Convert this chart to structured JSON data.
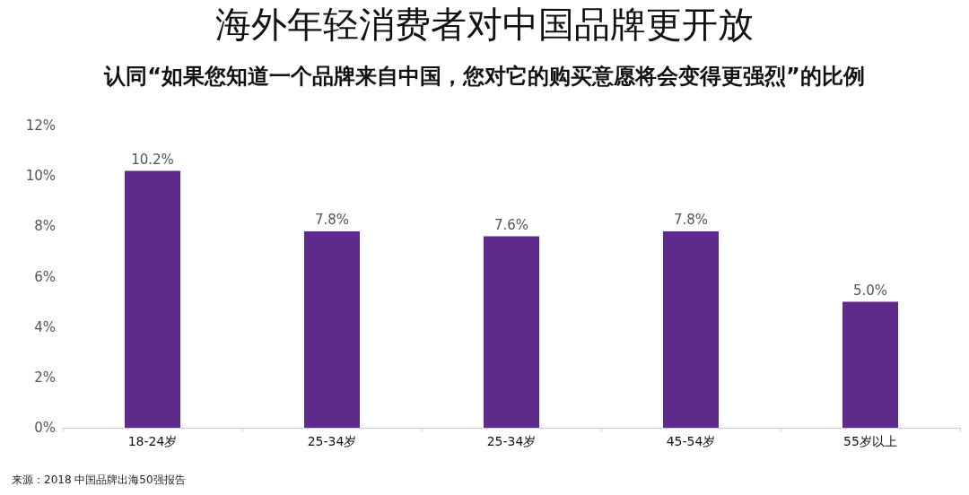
{
  "chart_data": {
    "type": "bar",
    "title": "海外年轻消费者对中国品牌更开放",
    "subtitle": "认同“如果您知道一个品牌来自中国，您对它的购买意愿将会变得更强烈”的比例",
    "categories": [
      "18-24岁",
      "25-34岁",
      "25-34岁",
      "45-54岁",
      "55岁以上"
    ],
    "values": [
      10.2,
      7.8,
      7.6,
      7.8,
      5.0
    ],
    "value_labels": [
      "10.2%",
      "7.8%",
      "7.6%",
      "7.8%",
      "5.0%"
    ],
    "color": "#5e2a8c",
    "ylim": [
      0,
      12
    ],
    "yticks": [
      {
        "value": 0,
        "label": "0%"
      },
      {
        "value": 2,
        "label": "2%"
      },
      {
        "value": 4,
        "label": "4%"
      },
      {
        "value": 6,
        "label": "6%"
      },
      {
        "value": 8,
        "label": "8%"
      },
      {
        "value": 10,
        "label": "10%"
      },
      {
        "value": 12,
        "label": "12%"
      }
    ],
    "grid": false,
    "annotations": [
      "来源：2018 中国品牌出海50强报告"
    ]
  }
}
